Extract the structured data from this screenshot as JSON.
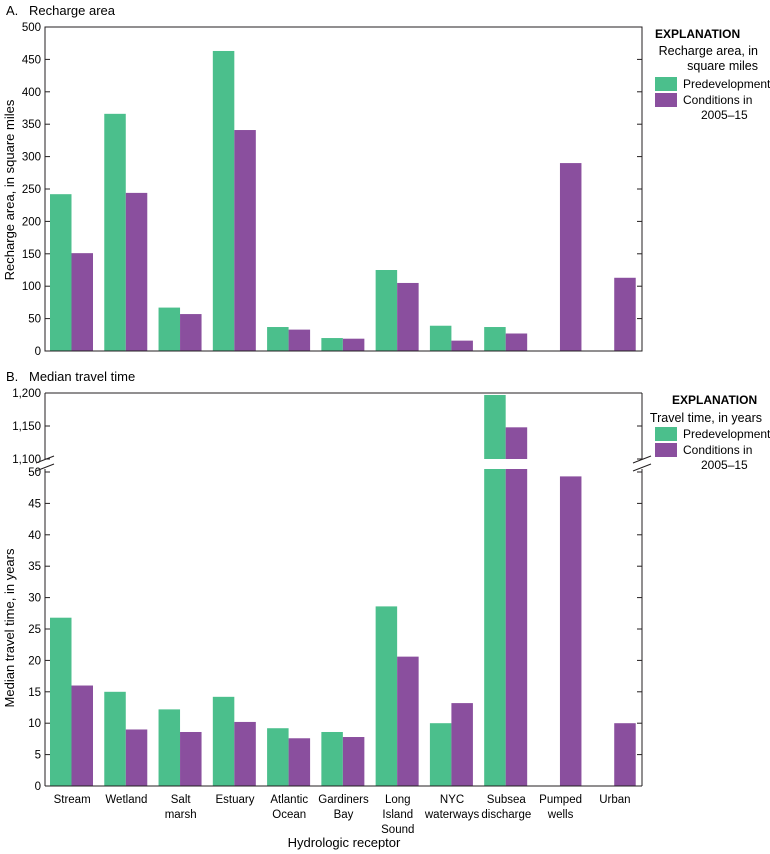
{
  "colors": {
    "predevelopment": "#4bbf8c",
    "current": "#8a4f9e",
    "axis": "#231f20",
    "background": "#ffffff"
  },
  "x_axis_label": "Hydrologic receptor",
  "categories": [
    [
      "Stream"
    ],
    [
      "Wetland"
    ],
    [
      "Salt",
      "marsh"
    ],
    [
      "Estuary"
    ],
    [
      "Atlantic",
      "Ocean"
    ],
    [
      "Gardiners",
      "Bay"
    ],
    [
      "Long",
      "Island",
      "Sound"
    ],
    [
      "NYC",
      "waterways"
    ],
    [
      "Subsea",
      "discharge"
    ],
    [
      "Pumped",
      "wells"
    ],
    [
      "Urban"
    ]
  ],
  "chart_data": [
    {
      "type": "bar",
      "panel_label": "A.",
      "title": "Recharge area",
      "ylabel": "Recharge area, in square miles",
      "ylim": [
        0,
        500
      ],
      "yticks": [
        0,
        50,
        100,
        150,
        200,
        250,
        300,
        350,
        400,
        450,
        500
      ],
      "ytick_labels": [
        "0",
        "50",
        "100",
        "150",
        "200",
        "250",
        "300",
        "350",
        "400",
        "450",
        "500"
      ],
      "legend": {
        "heading": "EXPLANATION",
        "title_lines": [
          "Recharge area, in",
          "square miles"
        ],
        "placement": "right"
      },
      "series": [
        {
          "name": "Predevelopment",
          "name_lines": [
            "Predevelopment"
          ],
          "color_key": "predevelopment",
          "values": [
            242,
            366,
            67,
            463,
            37,
            20,
            125,
            39,
            37,
            null,
            null
          ]
        },
        {
          "name": "Conditions in 2005–15",
          "name_lines": [
            "Conditions in",
            "2005–15"
          ],
          "color_key": "current",
          "values": [
            151,
            244,
            57,
            341,
            33,
            19,
            105,
            16,
            27,
            290,
            113
          ]
        }
      ]
    },
    {
      "type": "bar",
      "panel_label": "B.",
      "title": "Median travel time",
      "ylabel": "Median travel time, in years",
      "broken_axis": true,
      "ylim_lower": [
        0,
        50
      ],
      "ylim_upper": [
        1100,
        1200
      ],
      "yticks_lower": [
        0,
        5,
        10,
        15,
        20,
        25,
        30,
        35,
        40,
        45,
        50
      ],
      "ytick_labels_lower": [
        "0",
        "5",
        "10",
        "15",
        "20",
        "25",
        "30",
        "35",
        "40",
        "45",
        "50"
      ],
      "yticks_upper": [
        1100,
        1150,
        1200
      ],
      "ytick_labels_upper": [
        "1,100",
        "1,150",
        "1,200"
      ],
      "legend": {
        "heading": "EXPLANATION",
        "title_lines": [
          "Travel time, in years"
        ],
        "placement": "right"
      },
      "series": [
        {
          "name": "Predevelopment",
          "name_lines": [
            "Predevelopment"
          ],
          "color_key": "predevelopment",
          "values": [
            26.8,
            15.0,
            12.2,
            14.2,
            9.2,
            8.6,
            28.6,
            10.0,
            1197,
            null,
            null
          ]
        },
        {
          "name": "Conditions in 2005–15",
          "name_lines": [
            "Conditions in",
            "2005–15"
          ],
          "color_key": "current",
          "values": [
            16.0,
            9.0,
            8.6,
            10.2,
            7.6,
            7.8,
            20.6,
            13.2,
            1148,
            49.3,
            10.0
          ]
        }
      ]
    }
  ]
}
